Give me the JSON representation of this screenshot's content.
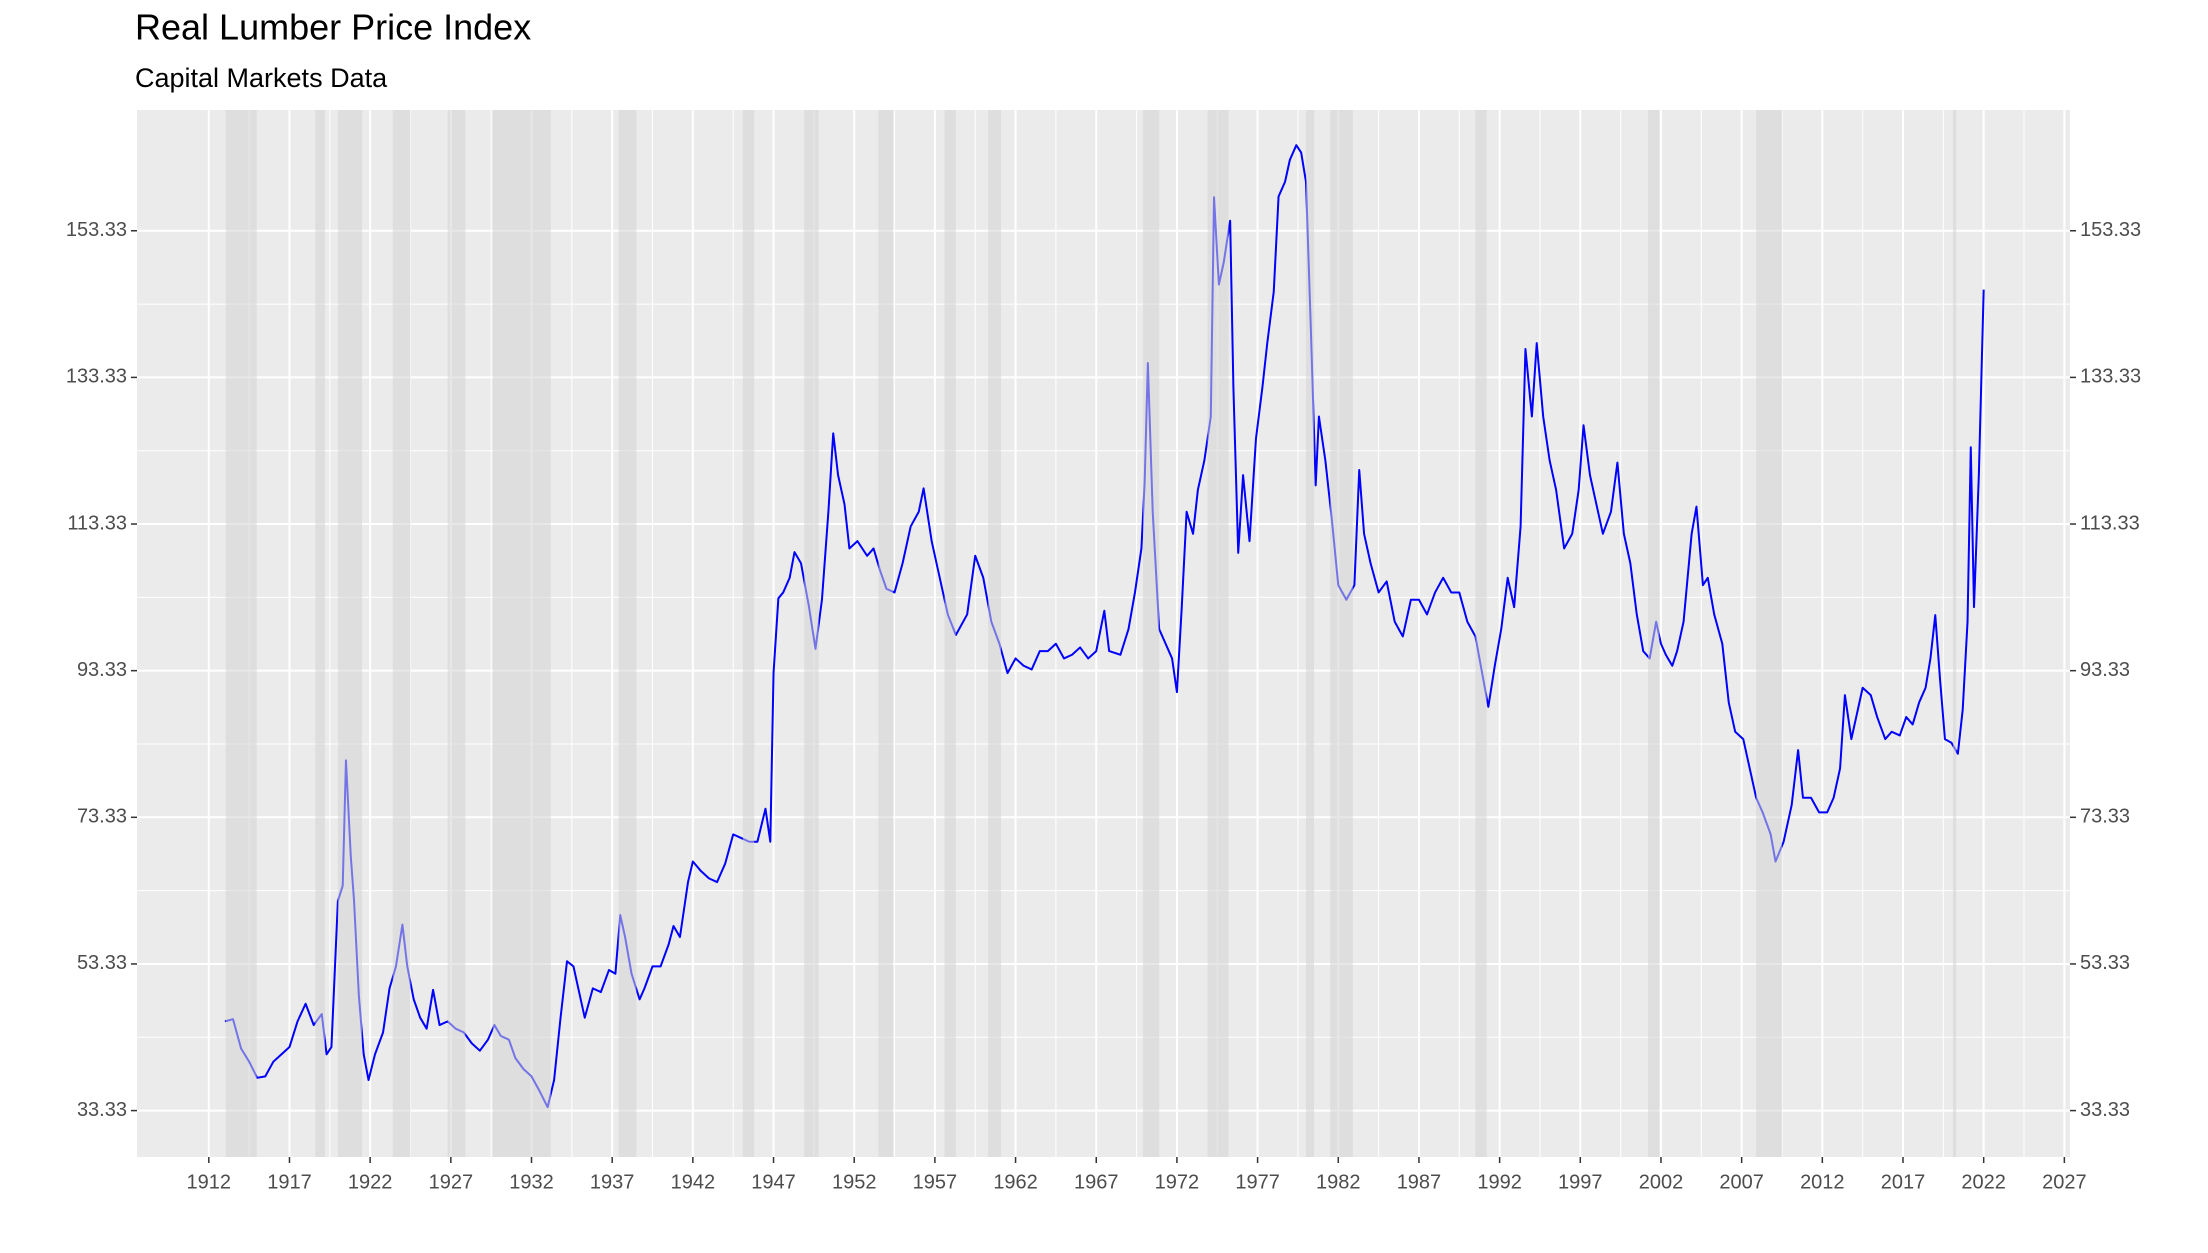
{
  "chart_data": {
    "type": "line",
    "title": "Real Lumber Price Index",
    "subtitle": "Capital Markets Data",
    "color": "#0000ff",
    "grid": true,
    "mirror_y_axis": true,
    "shade_color": "#d3d3d3",
    "xlim": [
      1907.55,
      2027.35
    ],
    "ylim": [
      27.0,
      169.8
    ],
    "xticks": [
      1912,
      1917,
      1922,
      1927,
      1932,
      1937,
      1942,
      1947,
      1952,
      1957,
      1962,
      1967,
      1972,
      1977,
      1982,
      1987,
      1992,
      1997,
      2002,
      2007,
      2012,
      2017,
      2022,
      2027
    ],
    "yticks": [
      33.33,
      53.33,
      73.33,
      93.33,
      113.33,
      133.33,
      153.33
    ],
    "shaded_periods": [
      [
        1913.05,
        1914.97
      ],
      [
        1918.6,
        1919.2
      ],
      [
        1920.0,
        1921.5
      ],
      [
        1923.4,
        1924.5
      ],
      [
        1926.8,
        1927.9
      ],
      [
        1929.6,
        1933.2
      ],
      [
        1937.4,
        1938.5
      ],
      [
        1945.1,
        1945.8
      ],
      [
        1948.9,
        1949.8
      ],
      [
        1953.5,
        1954.4
      ],
      [
        1957.6,
        1958.3
      ],
      [
        1960.3,
        1961.1
      ],
      [
        1969.9,
        1970.9
      ],
      [
        1973.9,
        1975.2
      ],
      [
        1980.0,
        1980.5
      ],
      [
        1981.5,
        1982.9
      ],
      [
        1990.5,
        1991.2
      ],
      [
        2001.2,
        2001.9
      ],
      [
        2007.9,
        2009.5
      ],
      [
        2020.1,
        2020.3
      ]
    ],
    "x": [
      1913.0,
      1913.5,
      1914.0,
      1914.5,
      1915.0,
      1915.5,
      1916.0,
      1916.5,
      1917.0,
      1917.5,
      1918.0,
      1918.5,
      1919.0,
      1919.3,
      1919.6,
      1920.0,
      1920.3,
      1920.5,
      1920.8,
      1921.0,
      1921.3,
      1921.6,
      1921.9,
      1922.3,
      1922.8,
      1923.2,
      1923.6,
      1924.0,
      1924.3,
      1924.7,
      1925.1,
      1925.5,
      1925.9,
      1926.3,
      1926.8,
      1927.3,
      1927.8,
      1928.3,
      1928.8,
      1929.3,
      1929.7,
      1930.1,
      1930.6,
      1931.0,
      1931.5,
      1932.0,
      1932.5,
      1933.0,
      1933.4,
      1933.8,
      1934.2,
      1934.6,
      1935.0,
      1935.3,
      1935.8,
      1936.3,
      1936.8,
      1937.2,
      1937.5,
      1937.8,
      1938.2,
      1938.7,
      1939.0,
      1939.5,
      1940.0,
      1940.5,
      1940.8,
      1941.2,
      1941.7,
      1942.0,
      1942.5,
      1943.0,
      1943.5,
      1944.0,
      1944.5,
      1945.0,
      1945.5,
      1946.0,
      1946.5,
      1946.8,
      1947.0,
      1947.3,
      1947.6,
      1948.0,
      1948.3,
      1948.7,
      1949.2,
      1949.6,
      1950.0,
      1950.4,
      1950.7,
      1951.0,
      1951.4,
      1951.7,
      1952.2,
      1952.8,
      1953.2,
      1953.6,
      1954.0,
      1954.5,
      1955.0,
      1955.5,
      1956.0,
      1956.3,
      1956.8,
      1957.2,
      1957.8,
      1958.3,
      1959.0,
      1959.5,
      1960.0,
      1960.5,
      1961.0,
      1961.5,
      1962.0,
      1962.5,
      1963.0,
      1963.5,
      1964.0,
      1964.5,
      1965.0,
      1965.5,
      1966.0,
      1966.5,
      1967.0,
      1967.5,
      1967.8,
      1968.5,
      1969.0,
      1969.4,
      1969.8,
      1970.0,
      1970.2,
      1970.5,
      1970.9,
      1971.3,
      1971.7,
      1972.0,
      1972.3,
      1972.6,
      1973.0,
      1973.3,
      1973.7,
      1974.1,
      1974.3,
      1974.6,
      1974.9,
      1975.3,
      1975.5,
      1975.8,
      1976.1,
      1976.5,
      1976.9,
      1977.3,
      1977.6,
      1978.0,
      1978.3,
      1978.7,
      1979.0,
      1979.4,
      1979.7,
      1980.0,
      1980.3,
      1980.6,
      1980.8,
      1981.2,
      1981.6,
      1982.0,
      1982.5,
      1983.0,
      1983.3,
      1983.6,
      1984.0,
      1984.5,
      1985.0,
      1985.5,
      1986.0,
      1986.5,
      1987.0,
      1987.5,
      1988.0,
      1988.5,
      1989.0,
      1989.5,
      1990.0,
      1990.5,
      1991.0,
      1991.3,
      1991.7,
      1992.1,
      1992.5,
      1992.9,
      1993.3,
      1993.6,
      1994.0,
      1994.3,
      1994.7,
      1995.1,
      1995.5,
      1996.0,
      1996.5,
      1996.9,
      1997.2,
      1997.6,
      1998.0,
      1998.4,
      1998.9,
      1999.3,
      1999.7,
      2000.1,
      2000.5,
      2000.9,
      2001.3,
      2001.7,
      2002.0,
      2002.3,
      2002.7,
      2003.0,
      2003.4,
      2003.9,
      2004.2,
      2004.6,
      2004.9,
      2005.3,
      2005.8,
      2006.2,
      2006.6,
      2007.1,
      2007.5,
      2007.9,
      2008.3,
      2008.8,
      2009.1,
      2009.6,
      2010.1,
      2010.5,
      2010.8,
      2011.3,
      2011.8,
      2012.3,
      2012.7,
      2013.1,
      2013.4,
      2013.8,
      2014.2,
      2014.5,
      2015.0,
      2015.4,
      2015.9,
      2016.3,
      2016.8,
      2017.2,
      2017.6,
      2018.0,
      2018.4,
      2018.7,
      2019.0,
      2019.3,
      2019.6,
      2020.0,
      2020.4,
      2020.7,
      2021.0,
      2021.2,
      2021.4,
      2021.7,
      2022.0
    ],
    "values": [
      45.5,
      45.8,
      41.8,
      40,
      37.8,
      38,
      40,
      41,
      42,
      45.5,
      47.9,
      45,
      46.5,
      41,
      42,
      61.9,
      64,
      81.1,
      68,
      62,
      49,
      41,
      37.5,
      41,
      44,
      50,
      53,
      58.7,
      53,
      48.5,
      46,
      44.5,
      49.8,
      45,
      45.5,
      44.5,
      44,
      42.5,
      41.5,
      43,
      45,
      43.5,
      43,
      40.5,
      39,
      38,
      36,
      33.8,
      37.5,
      46,
      53.7,
      53,
      49,
      46,
      50,
      49.5,
      52.5,
      52,
      60,
      57,
      52,
      48.5,
      50,
      53,
      53,
      56,
      58.5,
      57,
      64.5,
      67.3,
      66,
      65,
      64.5,
      67,
      71,
      70.5,
      70,
      70,
      74.5,
      70,
      93,
      103.2,
      104,
      106,
      109.5,
      108,
      102,
      96.3,
      103,
      115,
      125.7,
      120,
      116,
      110,
      111,
      109,
      110,
      107,
      104.5,
      104,
      108,
      113,
      115,
      118.2,
      111,
      107,
      101,
      98.2,
      101,
      109,
      106,
      100,
      97,
      93,
      95,
      94,
      93.5,
      96,
      96,
      97,
      95,
      95.5,
      96.5,
      95,
      96,
      101.5,
      96,
      95.5,
      99,
      104,
      110,
      119,
      135.3,
      115,
      99,
      97,
      95,
      90.4,
      102,
      115,
      112,
      118,
      122,
      128,
      157.9,
      146,
      149,
      154.7,
      132,
      109.4,
      120,
      111,
      125,
      132,
      138,
      145,
      158,
      160,
      163,
      165,
      164,
      160,
      140,
      118.6,
      128,
      122,
      114,
      105,
      103,
      105,
      120.7,
      112,
      108,
      104,
      105.5,
      100,
      98,
      103,
      103,
      101,
      104,
      106,
      104,
      104,
      100,
      98,
      92,
      88.4,
      94,
      99,
      106,
      102,
      113,
      137.2,
      128,
      138,
      128,
      122,
      118,
      110,
      112,
      118,
      126.8,
      120,
      116,
      112,
      115,
      121.7,
      112,
      108,
      101,
      96,
      95,
      100,
      97,
      95.5,
      94,
      96,
      100,
      112,
      115.7,
      105,
      106,
      101,
      97,
      89,
      85,
      84,
      80,
      76,
      74,
      71,
      67.3,
      70,
      75,
      82.5,
      76,
      76,
      74,
      74,
      76,
      80,
      90,
      84,
      88,
      91,
      90,
      87,
      84,
      85,
      84.5,
      87,
      86,
      89,
      91,
      95,
      100.9,
      92,
      84,
      83.5,
      82,
      88,
      100,
      123.8,
      102,
      120,
      145.3
    ]
  }
}
